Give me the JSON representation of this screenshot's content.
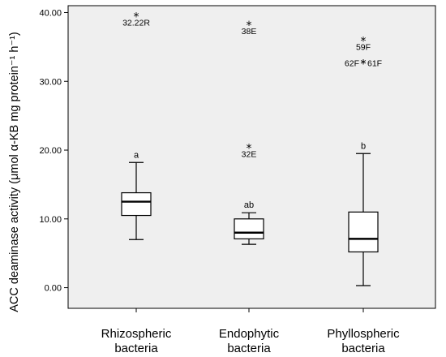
{
  "chart_data": {
    "type": "boxplot",
    "title": "",
    "xlabel": "",
    "ylabel": "ACC deaminase activity (μmol α-KB mg protein⁻¹ h⁻¹)",
    "ylim": [
      -3,
      41
    ],
    "yticks": [
      "0.00",
      "10.00",
      "20.00",
      "30.00",
      "40.00"
    ],
    "ytick_values": [
      0,
      10,
      20,
      30,
      40
    ],
    "grid": false,
    "plot_background": "#efefef",
    "box_fill": "#ffffff",
    "categories": [
      {
        "line1": "Rhizospheric",
        "line2": "bacteria"
      },
      {
        "line1": "Endophytic",
        "line2": "bacteria"
      },
      {
        "line1": "Phyllospheric",
        "line2": "bacteria"
      }
    ],
    "boxes": [
      {
        "whisker_low": 7.0,
        "q1": 10.5,
        "median": 12.5,
        "q3": 13.8,
        "whisker_high": 18.2,
        "letter": "a"
      },
      {
        "whisker_low": 6.3,
        "q1": 7.1,
        "median": 8.0,
        "q3": 10.0,
        "whisker_high": 10.9,
        "letter": "ab"
      },
      {
        "whisker_low": 0.3,
        "q1": 5.2,
        "median": 7.1,
        "q3": 11.0,
        "whisker_high": 19.5,
        "letter": "b"
      }
    ],
    "outliers": [
      {
        "group": 0,
        "value": 39.5,
        "label": "32.22R",
        "label_side": "below"
      },
      {
        "group": 1,
        "value": 38.3,
        "label": "38E",
        "label_side": "below"
      },
      {
        "group": 1,
        "value": 20.4,
        "label": "32E",
        "label_side": "below"
      },
      {
        "group": 2,
        "value": 36.0,
        "label": "59F",
        "label_side": "below"
      },
      {
        "group": 2,
        "value": 32.7,
        "label": "62F",
        "label_side": "left"
      },
      {
        "group": 2,
        "value": 32.7,
        "label": "61F",
        "label_side": "right"
      }
    ]
  }
}
